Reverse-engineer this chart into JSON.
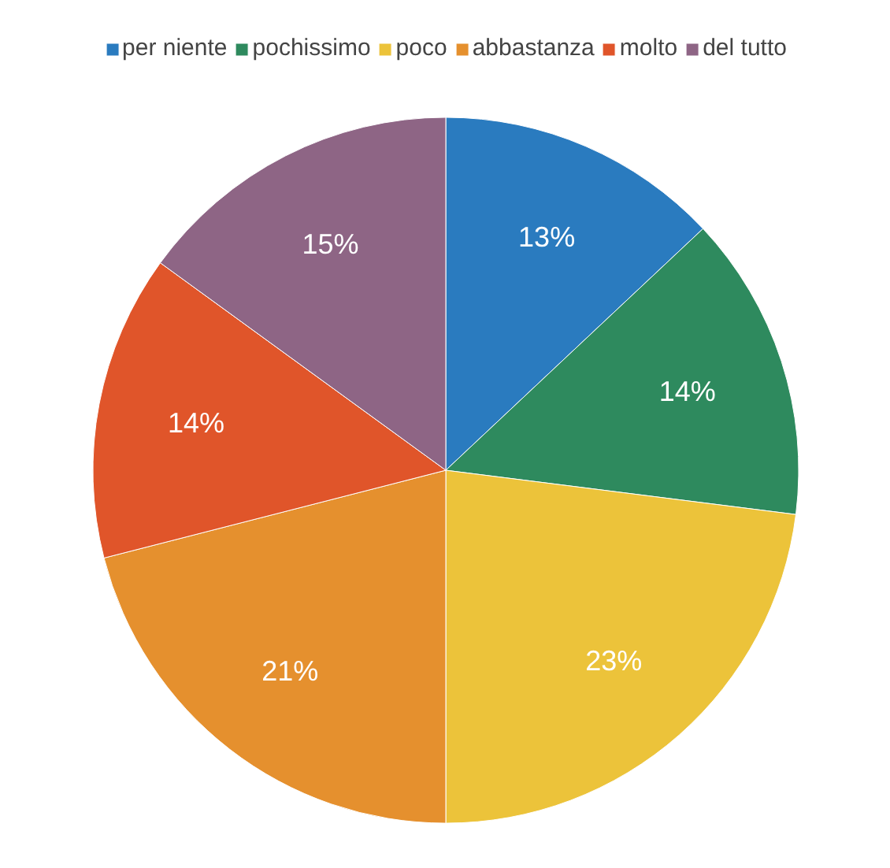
{
  "chart_data": {
    "type": "pie",
    "categories": [
      "per niente",
      "pochissimo",
      "poco",
      "abbastanza",
      "molto",
      "del tutto"
    ],
    "values": [
      13,
      14,
      23,
      21,
      14,
      15
    ],
    "colors": [
      "#2a7bbf",
      "#2e8a5e",
      "#ecc33a",
      "#e5902e",
      "#e0552a",
      "#8e6585"
    ],
    "value_labels": [
      "13%",
      "14%",
      "23%",
      "21%",
      "14%",
      "15%"
    ],
    "legend": "top"
  }
}
